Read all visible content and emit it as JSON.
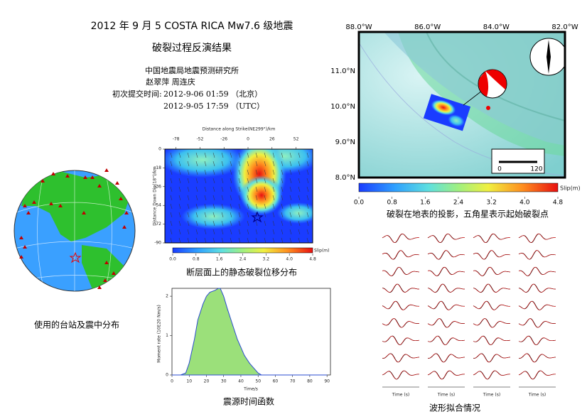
{
  "header": {
    "title": "2012 年 9 月 5 COSTA RICA Mw7.6 级地震",
    "subtitle": "破裂过程反演结果",
    "institution": "中国地震局地震预测研究所",
    "authors": "赵翠萍 周连庆",
    "submit_label": "初次提交时间:",
    "time_beijing": "2012-9-06 01:59 （北京）",
    "time_utc": "2012-9-05 17:59 （UTC）"
  },
  "globe": {
    "caption": "使用的台站及震中分布"
  },
  "slip_section": {
    "xlabel": "Distance along Strike(NE299°)/km",
    "ylabel": "Distance Down Dip(18°)/km",
    "xlim": [
      -90,
      70
    ],
    "xticks": [
      -78,
      -52,
      -26,
      0,
      26,
      52
    ],
    "ylim": [
      0,
      -90
    ],
    "yticks": [
      0,
      -18,
      -36,
      -54,
      -72,
      -90
    ],
    "colorbar_label": "Slip(m)",
    "colorbar_lim": [
      0,
      4.8
    ],
    "colorbar_ticks": [
      {
        "value": 0,
        "label": "0.0"
      },
      0.8,
      1.6,
      2.4,
      3.2,
      {
        "value": 4,
        "label": "4.0"
      },
      4.8
    ],
    "caption": "断层面上的静态破裂位移分布"
  },
  "map": {
    "lon_labels": [
      "88.0°W",
      "86.0°W",
      "84.0°W",
      "82.0°W"
    ],
    "lat_labels": [
      "11.0°N",
      "10.0°N",
      "9.0°N",
      "8.0°N"
    ],
    "scale_labels": [
      "0",
      "120"
    ],
    "colorbar_label": "Slip(m)",
    "colorbar_lim": [
      0,
      4.8
    ],
    "colorbar_ticks": [
      {
        "value": 0,
        "label": "0.0"
      },
      0.8,
      1.6,
      2.4,
      3.2,
      {
        "value": 4,
        "label": "4.0"
      },
      4.8
    ],
    "caption": "破裂在地表的投影，五角星表示起始破裂点"
  },
  "moment_rate": {
    "type": "area",
    "xlabel": "Time/s",
    "ylabel": "Moment rate (10E20 Nm/s)",
    "x": [
      0,
      5,
      8,
      10,
      13,
      15,
      18,
      20,
      22,
      25,
      27,
      28,
      30,
      32,
      35,
      38,
      40,
      42,
      45,
      48,
      50,
      52,
      90
    ],
    "values": [
      0,
      0,
      0.05,
      0.3,
      0.9,
      1.4,
      1.8,
      2.0,
      2.1,
      2.15,
      2.2,
      2.2,
      2.0,
      1.7,
      1.3,
      0.9,
      0.7,
      0.5,
      0.3,
      0.15,
      0.05,
      0,
      0
    ],
    "color": "#9be07a",
    "line_color": "#2a4bd0",
    "xlim": [
      0,
      92
    ],
    "xticks": [
      0,
      10,
      20,
      30,
      40,
      50,
      60,
      70,
      80,
      90
    ],
    "ylim": [
      0,
      2.2
    ],
    "yticks": [
      0,
      1,
      2
    ],
    "caption": "震源时间函数"
  },
  "waveforms": {
    "time_label": "Time (s)",
    "caption": "波形拟合情况"
  }
}
